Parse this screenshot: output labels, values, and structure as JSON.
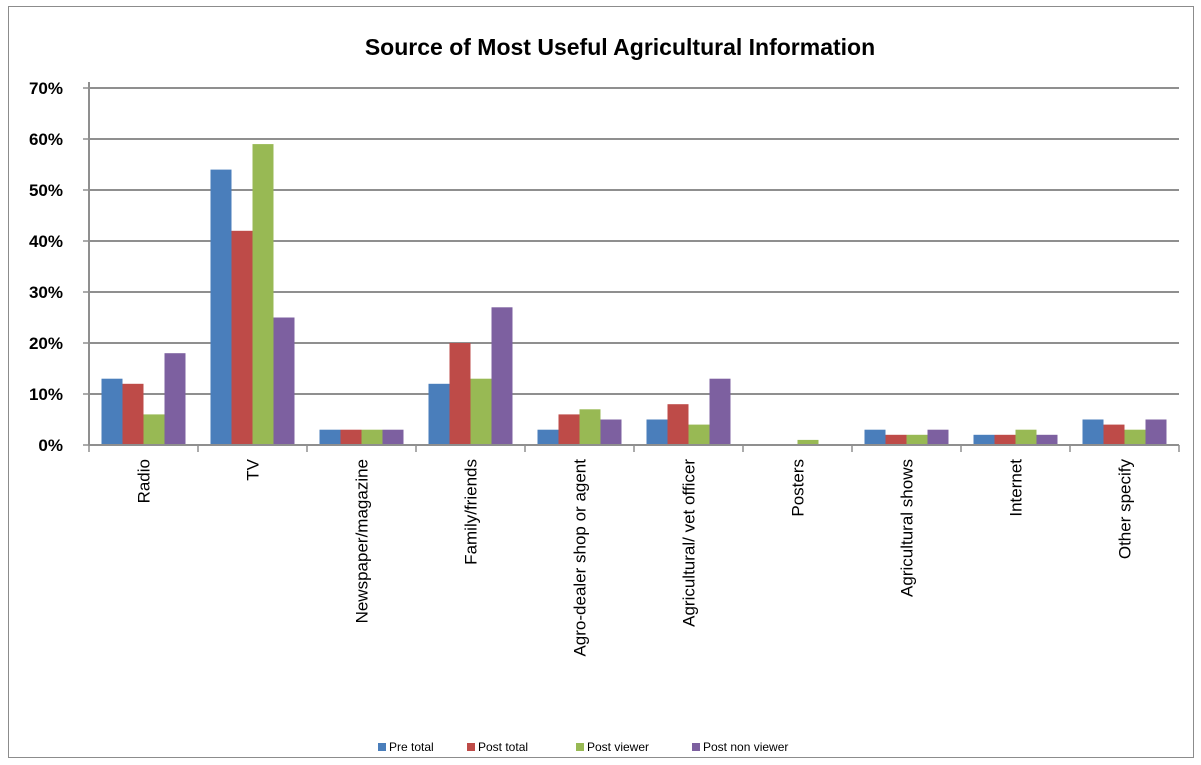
{
  "chart_data": {
    "type": "bar",
    "title": "Source of Most Useful Agricultural Information",
    "xlabel": "",
    "ylabel": "",
    "ylim": [
      0,
      70
    ],
    "y_unit": "%",
    "y_ticks": [
      "0%",
      "10%",
      "20%",
      "30%",
      "40%",
      "50%",
      "60%",
      "70%"
    ],
    "grid": true,
    "legend_position": "bottom",
    "categories": [
      "Radio",
      "TV",
      "Newspaper/magazine",
      "Family/friends",
      "Agro-dealer shop or agent",
      "Agricultural/ vet officer",
      "Posters",
      "Agricultural shows",
      "Internet",
      "Other specify"
    ],
    "series": [
      {
        "name": "Pre total",
        "color": "#4a7ebb",
        "values": [
          13,
          54,
          3,
          12,
          3,
          5,
          0,
          3,
          2,
          5
        ]
      },
      {
        "name": "Post total",
        "color": "#be4b48",
        "values": [
          12,
          42,
          3,
          20,
          6,
          8,
          0,
          2,
          2,
          4
        ]
      },
      {
        "name": "Post viewer",
        "color": "#98b954",
        "values": [
          6,
          59,
          3,
          13,
          7,
          4,
          1,
          2,
          3,
          3
        ]
      },
      {
        "name": "Post non viewer",
        "color": "#7d60a0",
        "values": [
          18,
          25,
          3,
          27,
          5,
          13,
          0,
          3,
          2,
          5
        ]
      }
    ]
  }
}
